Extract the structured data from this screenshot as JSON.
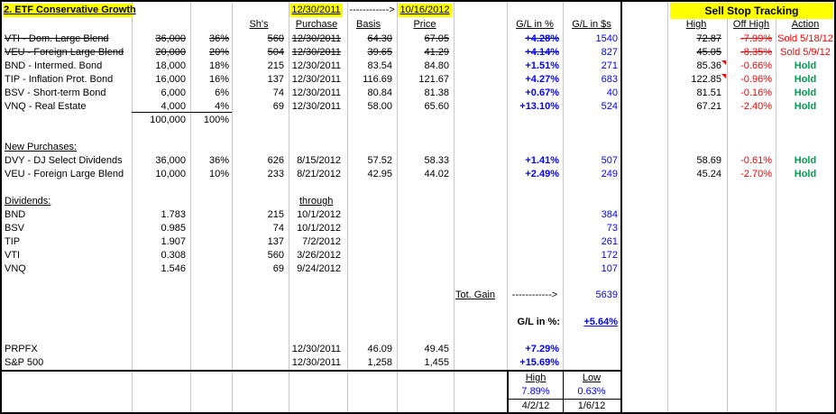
{
  "header": {
    "title": "2. ETF Conservative Growth",
    "col_shares": "Sh's",
    "date_start": "12/30/2011",
    "arrow": "------------>",
    "date_end": "10/16/2012",
    "col_purchase": "Purchase",
    "col_basis": "Basis",
    "col_price": "Price",
    "col_gl_pct": "G/L in %",
    "col_gl_usd": "G/L in $s",
    "sell_stop_title": "Sell Stop Tracking",
    "col_high": "High",
    "col_off_high": "Off High",
    "col_action": "Action"
  },
  "holdings": [
    {
      "name": "VTI - Dom. Large Blend",
      "amount": "36,000",
      "pct": "36%",
      "shares": "560",
      "purchase": "12/30/2011",
      "basis": "64.30",
      "price": "67.05",
      "gl_pct": "+4.28%",
      "gl_usd": "1540",
      "high": "72.87",
      "off_high": "-7.99%",
      "action": "Sold 5/18/12",
      "struck": true
    },
    {
      "name": "VEU - Foreign Large Blend",
      "amount": "20,000",
      "pct": "20%",
      "shares": "504",
      "purchase": "12/30/2011",
      "basis": "39.65",
      "price": "41.29",
      "gl_pct": "+4.14%",
      "gl_usd": "827",
      "high": "45.05",
      "off_high": "-8.35%",
      "action": "Sold 5/9/12",
      "struck": true
    },
    {
      "name": "BND - Intermed. Bond",
      "amount": "18,000",
      "pct": "18%",
      "shares": "215",
      "purchase": "12/30/2011",
      "basis": "83.54",
      "price": "84.80",
      "gl_pct": "+1.51%",
      "gl_usd": "271",
      "high": "85.36",
      "off_high": "-0.66%",
      "action": "Hold",
      "struck": false
    },
    {
      "name": "TIP - Inflation Prot. Bond",
      "amount": "16,000",
      "pct": "16%",
      "shares": "137",
      "purchase": "12/30/2011",
      "basis": "116.69",
      "price": "121.67",
      "gl_pct": "+4.27%",
      "gl_usd": "683",
      "high": "122.85",
      "off_high": "-0.96%",
      "action": "Hold",
      "struck": false
    },
    {
      "name": "BSV - Short-term Bond",
      "amount": "6,000",
      "pct": "6%",
      "shares": "74",
      "purchase": "12/30/2011",
      "basis": "80.84",
      "price": "81.38",
      "gl_pct": "+0.67%",
      "gl_usd": "40",
      "high": "81.51",
      "off_high": "-0.16%",
      "action": "Hold",
      "struck": false
    },
    {
      "name": "VNQ - Real Estate",
      "amount": "4,000",
      "pct": "4%",
      "shares": "69",
      "purchase": "12/30/2011",
      "basis": "58.00",
      "price": "65.60",
      "gl_pct": "+13.10%",
      "gl_usd": "524",
      "high": "67.21",
      "off_high": "-2.40%",
      "action": "Hold",
      "struck": false
    }
  ],
  "totals": {
    "amount": "100,000",
    "pct": "100%"
  },
  "new_purchases": {
    "label": "New Purchases:",
    "rows": [
      {
        "name": "DVY - DJ Select Dividends",
        "amount": "36,000",
        "pct": "36%",
        "shares": "626",
        "purchase": "8/15/2012",
        "basis": "57.52",
        "price": "58.33",
        "gl_pct": "+1.41%",
        "gl_usd": "507",
        "high": "58.69",
        "off_high": "-0.61%",
        "action": "Hold"
      },
      {
        "name": "VEU - Foreign Large Blend",
        "amount": "10,000",
        "pct": "10%",
        "shares": "233",
        "purchase": "8/21/2012",
        "basis": "42.95",
        "price": "44.02",
        "gl_pct": "+2.49%",
        "gl_usd": "249",
        "high": "45.24",
        "off_high": "-2.70%",
        "action": "Hold"
      }
    ]
  },
  "dividends": {
    "label": "Dividends:",
    "through_label": "through",
    "rows": [
      {
        "name": "BND",
        "amount": "1.783",
        "shares": "215",
        "date": "10/1/2012",
        "gl_usd": "384"
      },
      {
        "name": "BSV",
        "amount": "0.985",
        "shares": "74",
        "date": "10/1/2012",
        "gl_usd": "73"
      },
      {
        "name": "TIP",
        "amount": "1.907",
        "shares": "137",
        "date": "7/2/2012",
        "gl_usd": "261"
      },
      {
        "name": "VTI",
        "amount": "0.308",
        "shares": "560",
        "date": "3/26/2012",
        "gl_usd": "172"
      },
      {
        "name": "VNQ",
        "amount": "1.546",
        "shares": "69",
        "date": "9/24/2012",
        "gl_usd": "107"
      }
    ]
  },
  "summary": {
    "tot_gain_label": "Tot. Gain",
    "tot_gain_arrow": "------------>",
    "tot_gain_value": "5639",
    "gl_pct_label": "G/L in %:",
    "gl_pct_value": "+5.64%"
  },
  "benchmarks": [
    {
      "name": "PRPFX",
      "date": "12/30/2011",
      "basis": "46.09",
      "price": "49.45",
      "gl_pct": "+7.29%"
    },
    {
      "name": "S&P 500",
      "date": "12/30/2011",
      "basis": "1,258",
      "price": "1,455",
      "gl_pct": "+15.69%"
    }
  ],
  "high_low": {
    "high_label": "High",
    "low_label": "Low",
    "high_pct": "7.89%",
    "low_pct": "0.63%",
    "high_date": "4/2/12",
    "low_date": "1/6/12"
  },
  "colors": {
    "header_highlight": "#ffff00",
    "gain": "#0000ff",
    "loss": "#ff0000",
    "hold": "#00a050"
  }
}
